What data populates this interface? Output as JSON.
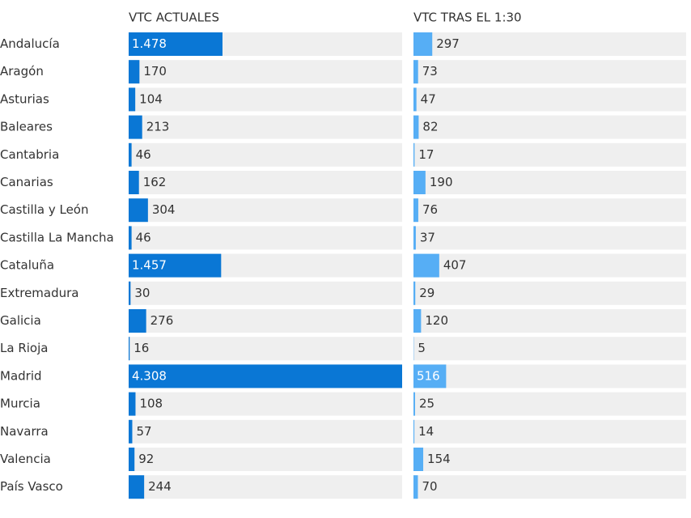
{
  "chart_data": {
    "type": "bar",
    "categories": [
      "Andalucía",
      "Aragón",
      "Asturias",
      "Baleares",
      "Cantabria",
      "Canarias",
      "Castilla y León",
      "Castilla La Mancha",
      "Cataluña",
      "Extremadura",
      "Galicia",
      "La Rioja",
      "Madrid",
      "Murcia",
      "Navarra",
      "Valencia",
      "País Vasco"
    ],
    "series": [
      {
        "name": "VTC ACTUALES",
        "color": "#0a77d5",
        "values": [
          1478,
          170,
          104,
          213,
          46,
          162,
          304,
          46,
          1457,
          30,
          276,
          16,
          4308,
          108,
          57,
          92,
          244
        ],
        "value_labels": [
          "1.478",
          "170",
          "104",
          "213",
          "46",
          "162",
          "304",
          "46",
          "1.457",
          "30",
          "276",
          "16",
          "4.308",
          "108",
          "57",
          "92",
          "244"
        ]
      },
      {
        "name": "VTC TRAS EL 1:30",
        "color": "#56aef5",
        "values": [
          297,
          73,
          47,
          82,
          17,
          190,
          76,
          37,
          407,
          29,
          120,
          5,
          516,
          25,
          14,
          154,
          70
        ]
      }
    ]
  }
}
